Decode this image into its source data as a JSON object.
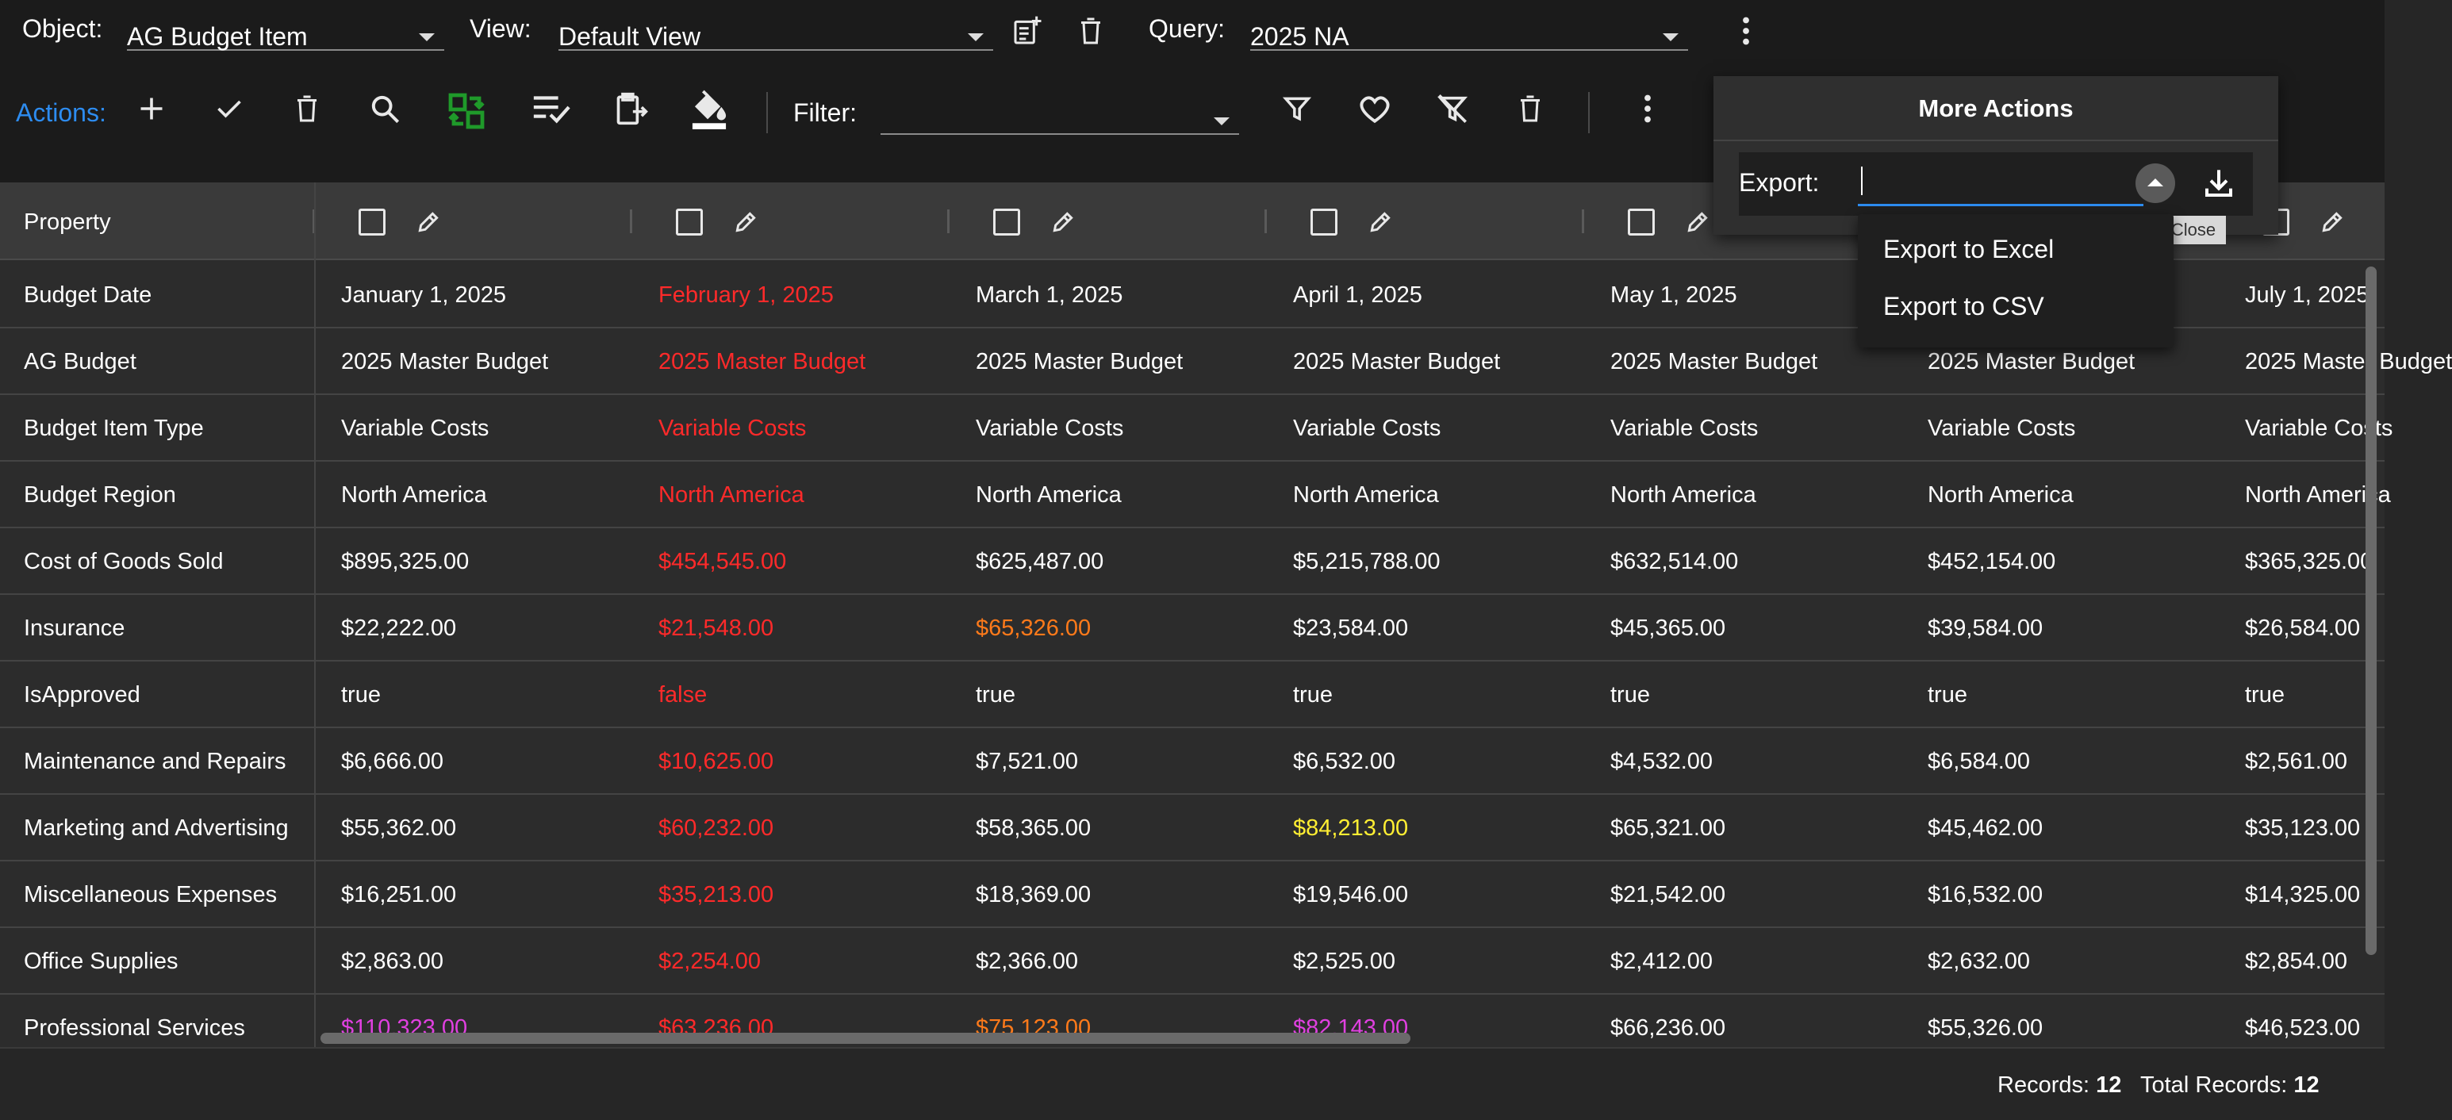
{
  "toolbar": {
    "object_label": "Object:",
    "object_value": "AG Budget Item",
    "view_label": "View:",
    "view_value": "Default View",
    "query_label": "Query:",
    "query_value": "2025 NA",
    "actions_label": "Actions:",
    "filter_label": "Filter:",
    "filter_value": "",
    "accent_color": "#2d8cf0",
    "icons": [
      "add-view-icon",
      "delete-view-icon",
      "more-vertical-icon",
      "plus-icon",
      "check-icon",
      "trash-icon",
      "search-icon",
      "swap-icon",
      "checklist-icon",
      "clipboard-icon",
      "fill-color-icon",
      "funnel-icon",
      "heart-icon",
      "clear-filter-icon",
      "trash-icon",
      "more-vertical-icon"
    ]
  },
  "more_actions": {
    "title": "More Actions",
    "export_label": "Export:",
    "export_value": "",
    "tooltip": "Close",
    "options": [
      "Export to Excel",
      "Export to CSV"
    ]
  },
  "grid": {
    "property_header": "Property",
    "rows": [
      {
        "property": "Budget Date",
        "values": [
          "January 1, 2025",
          "February 1, 2025",
          "March 1, 2025",
          "April 1, 2025",
          "May 1, 2025",
          "",
          "July 1, 2025"
        ]
      },
      {
        "property": "AG Budget",
        "values": [
          "2025 Master Budget",
          "2025 Master Budget",
          "2025 Master Budget",
          "2025 Master Budget",
          "2025 Master Budget",
          "2025 Master Budget",
          "2025 Master Budget"
        ]
      },
      {
        "property": "Budget Item Type",
        "values": [
          "Variable Costs",
          "Variable Costs",
          "Variable Costs",
          "Variable Costs",
          "Variable Costs",
          "Variable Costs",
          "Variable Costs"
        ]
      },
      {
        "property": "Budget Region",
        "values": [
          "North America",
          "North America",
          "North America",
          "North America",
          "North America",
          "North America",
          "North America"
        ]
      },
      {
        "property": "Cost of Goods Sold",
        "values": [
          "$895,325.00",
          "$454,545.00",
          "$625,487.00",
          "$5,215,788.00",
          "$632,514.00",
          "$452,154.00",
          "$365,325.00"
        ]
      },
      {
        "property": "Insurance",
        "values": [
          "$22,222.00",
          "$21,548.00",
          "$65,326.00",
          "$23,584.00",
          "$45,365.00",
          "$39,584.00",
          "$26,584.00"
        ]
      },
      {
        "property": "IsApproved",
        "values": [
          "true",
          "false",
          "true",
          "true",
          "true",
          "true",
          "true"
        ]
      },
      {
        "property": "Maintenance and Repairs",
        "values": [
          "$6,666.00",
          "$10,625.00",
          "$7,521.00",
          "$6,532.00",
          "$4,532.00",
          "$6,584.00",
          "$2,561.00"
        ]
      },
      {
        "property": "Marketing and Advertising",
        "values": [
          "$55,362.00",
          "$60,232.00",
          "$58,365.00",
          "$84,213.00",
          "$65,321.00",
          "$45,462.00",
          "$35,123.00"
        ]
      },
      {
        "property": "Miscellaneous Expenses",
        "values": [
          "$16,251.00",
          "$35,213.00",
          "$18,369.00",
          "$19,546.00",
          "$21,542.00",
          "$16,532.00",
          "$14,325.00"
        ]
      },
      {
        "property": "Office Supplies",
        "values": [
          "$2,863.00",
          "$2,254.00",
          "$2,366.00",
          "$2,525.00",
          "$2,412.00",
          "$2,632.00",
          "$2,854.00"
        ]
      },
      {
        "property": "Professional Services",
        "values": [
          "$110,323.00",
          "$63,236.00",
          "$75,123.00",
          "$82,143.00",
          "$66,236.00",
          "$55,326.00",
          "$46,523.00"
        ]
      }
    ],
    "colors": {
      "red": "#ff2a2a",
      "orange": "#ff7a1a",
      "yellow": "#ffee33",
      "magenta": "#e040e0",
      "default": "#ffffff"
    }
  },
  "footer": {
    "records_label": "Records:",
    "records_value": "12",
    "total_label": "Total Records:",
    "total_value": "12"
  }
}
